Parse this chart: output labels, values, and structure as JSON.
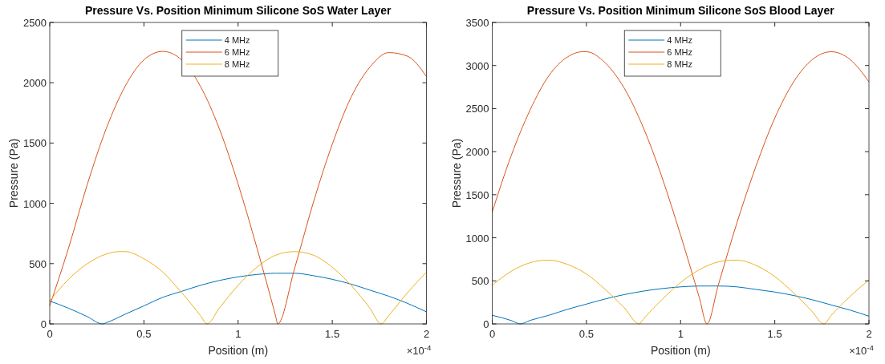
{
  "chart_data": [
    {
      "type": "line",
      "title": "Pressure Vs. Position Minimum Silicone SoS Water Layer",
      "xlabel": "Position (m)",
      "ylabel": "Pressure (Pa)",
      "xlim": [
        0,
        2
      ],
      "xticks": [
        0,
        0.5,
        1,
        1.5,
        2
      ],
      "ylim": [
        0,
        2500
      ],
      "yticks": [
        0,
        500,
        1000,
        1500,
        2000,
        2500
      ],
      "grid": false,
      "legend": "top",
      "marker": "none",
      "line_style": "solid",
      "annotations": [
        "×10$^{-4}$"
      ],
      "series": [
        {
          "name": "4 MHz",
          "color": "#0072bd",
          "x": [
            0,
            0.1,
            0.2,
            0.28,
            0.3,
            0.4,
            0.5,
            0.6,
            0.7,
            0.8,
            0.9,
            1.0,
            1.1,
            1.2,
            1.3,
            1.4,
            1.5,
            1.6,
            1.7,
            1.8,
            1.9,
            2.0
          ],
          "values": [
            190,
            130,
            60,
            0,
            10,
            80,
            150,
            220,
            270,
            320,
            360,
            390,
            410,
            420,
            420,
            400,
            370,
            330,
            280,
            230,
            170,
            100
          ]
        },
        {
          "name": "6 MHz",
          "color": "#d95319",
          "x": [
            0,
            0.1,
            0.2,
            0.3,
            0.4,
            0.5,
            0.6,
            0.7,
            0.8,
            0.9,
            1.0,
            1.1,
            1.2,
            1.21,
            1.3,
            1.4,
            1.5,
            1.6,
            1.7,
            1.8,
            1.9,
            2.0
          ],
          "values": [
            150,
            630,
            1160,
            1620,
            1970,
            2190,
            2260,
            2190,
            1970,
            1620,
            1160,
            630,
            60,
            0,
            460,
            1010,
            1490,
            1880,
            2130,
            2250,
            2220,
            2050
          ]
        },
        {
          "name": "8 MHz",
          "color": "#edb120",
          "x": [
            0,
            0.1,
            0.2,
            0.3,
            0.37,
            0.4,
            0.5,
            0.6,
            0.7,
            0.8,
            0.835,
            0.9,
            1.0,
            1.1,
            1.2,
            1.3,
            1.4,
            1.5,
            1.6,
            1.7,
            1.76,
            1.8,
            1.9,
            2.0
          ],
          "values": [
            190,
            370,
            500,
            580,
            600,
            600,
            540,
            430,
            260,
            70,
            0,
            130,
            320,
            470,
            570,
            600,
            570,
            470,
            320,
            130,
            0,
            70,
            260,
            430
          ]
        }
      ]
    },
    {
      "type": "line",
      "title": "Pressure Vs. Position Minimum Silicone SoS Blood Layer",
      "xlabel": "Position (m)",
      "ylabel": "Pressure (Pa)",
      "xlim": [
        0,
        2
      ],
      "xticks": [
        0,
        0.5,
        1,
        1.5,
        2
      ],
      "ylim": [
        0,
        3500
      ],
      "yticks": [
        0,
        500,
        1000,
        1500,
        2000,
        2500,
        3000,
        3500
      ],
      "grid": false,
      "legend": "top",
      "marker": "none",
      "line_style": "solid",
      "annotations": [
        "×10$^{-4}$"
      ],
      "series": [
        {
          "name": "4 MHz",
          "color": "#0072bd",
          "x": [
            0,
            0.1,
            0.15,
            0.2,
            0.3,
            0.4,
            0.5,
            0.6,
            0.7,
            0.8,
            0.9,
            1.0,
            1.1,
            1.14,
            1.2,
            1.3,
            1.4,
            1.5,
            1.6,
            1.7,
            1.8,
            1.9,
            2.0
          ],
          "values": [
            100,
            40,
            0,
            40,
            100,
            170,
            230,
            290,
            340,
            380,
            410,
            430,
            440,
            440,
            440,
            430,
            400,
            370,
            330,
            280,
            220,
            160,
            90
          ]
        },
        {
          "name": "6 MHz",
          "color": "#d95319",
          "x": [
            0,
            0.1,
            0.2,
            0.3,
            0.4,
            0.48,
            0.5,
            0.6,
            0.7,
            0.8,
            0.9,
            1.0,
            1.1,
            1.14,
            1.2,
            1.3,
            1.4,
            1.5,
            1.6,
            1.7,
            1.8,
            1.9,
            2.0
          ],
          "values": [
            1300,
            1950,
            2480,
            2880,
            3100,
            3160,
            3160,
            3030,
            2740,
            2290,
            1710,
            1030,
            300,
            0,
            450,
            1180,
            1830,
            2390,
            2810,
            3070,
            3160,
            3070,
            2810
          ]
        },
        {
          "name": "8 MHz",
          "color": "#edb120",
          "x": [
            0,
            0.1,
            0.2,
            0.29,
            0.3,
            0.4,
            0.5,
            0.6,
            0.7,
            0.78,
            0.8,
            0.9,
            1.0,
            1.1,
            1.2,
            1.27,
            1.3,
            1.4,
            1.5,
            1.6,
            1.7,
            1.76,
            1.8,
            1.9,
            2.0
          ],
          "values": [
            450,
            610,
            710,
            740,
            740,
            690,
            580,
            400,
            190,
            0,
            50,
            280,
            480,
            630,
            720,
            740,
            740,
            680,
            550,
            360,
            140,
            0,
            100,
            320,
            510
          ]
        }
      ]
    }
  ]
}
